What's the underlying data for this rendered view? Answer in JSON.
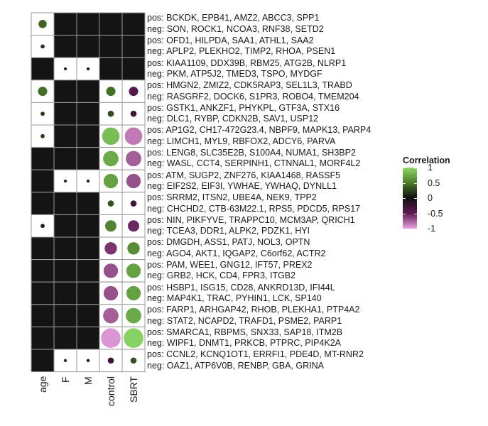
{
  "chart_data": {
    "type": "heatmap",
    "columns": [
      "age",
      "F",
      "M",
      "control",
      "SBRT"
    ],
    "rows": [
      {
        "pos": "pos: BCKDK, EPB41, AMZ2, ABCC3, SPP1",
        "neg": "neg: SON, ROCK1, NCOA3, RNF38, SETD2",
        "values": [
          0.4,
          null,
          null,
          null,
          null
        ]
      },
      {
        "pos": "pos: OFD1, HILPDA, SAA1, ATHL1, SAA2",
        "neg": "neg: APLP2, PLEKHO2, TIMP2, RHOA, PSEN1",
        "values": [
          0.2,
          null,
          null,
          null,
          null
        ]
      },
      {
        "pos": "pos: KIAA1109, DDX39B, RBM25, ATG2B, NLRP1",
        "neg": "neg: PKM, ATP5J2, TMED3, TSPO, MYDGF",
        "values": [
          null,
          0.15,
          -0.15,
          null,
          null
        ]
      },
      {
        "pos": "pos: HMGN2, ZMIZ2, CDK5RAP3, SEL1L3, TRABD",
        "neg": "neg: RASGRF2, DOCK6, S1PR3, ROBO4, TMEM204",
        "values": [
          0.45,
          null,
          null,
          0.45,
          -0.45
        ]
      },
      {
        "pos": "pos: GSTK1, ANKZF1, PHYKPL, GTF3A, STX16",
        "neg": "neg: DLC1, RYBP, CDKN2B, SAV1, USP12",
        "values": [
          0.2,
          null,
          null,
          0.3,
          -0.3
        ]
      },
      {
        "pos": "pos: AP1G2, CH17-472G23.4, NBPF9, MAPK13, PARP4",
        "neg": "neg: LIMCH1, MYL9, RBFOX2, ADCY6, PARVA",
        "values": [
          0.2,
          null,
          null,
          0.85,
          -0.85
        ]
      },
      {
        "pos": "pos: LENG8, SLC35E2B, S100A4, NUMA1, SH3BP2",
        "neg": "neg: WASL, CCT4, SERPINH1, CTNNAL1, MORF4L2",
        "values": [
          null,
          null,
          null,
          0.75,
          -0.75
        ]
      },
      {
        "pos": "pos: ATM, SUGP2, ZNF276, KIAA1468, RASSF5",
        "neg": "neg: EIF2S2, EIF3I, YWHAE, YWHAQ, DYNLL1",
        "values": [
          null,
          0.15,
          -0.15,
          0.7,
          -0.7
        ]
      },
      {
        "pos": "pos: SRRM2, ITSN2, UBE4A, NEK9, TPP2",
        "neg": "neg: CHCHD2, CTB-63M22.1, RPS5, PDCD5, RPS17",
        "values": [
          null,
          null,
          null,
          0.3,
          -0.3
        ]
      },
      {
        "pos": "pos: NIN, PIKFYVE, TRAPPC10, MCM3AP, QRICH1",
        "neg": "neg: TCEA3, DDR1, ALPK2, PDZK1, HYI",
        "values": [
          -0.2,
          null,
          null,
          0.55,
          -0.55
        ]
      },
      {
        "pos": "pos: DMGDH, ASS1, PATJ, NOL3, OPTN",
        "neg": "neg: AGO4, AKT1, IQGAP2, C6orf62, ACTR2",
        "values": [
          null,
          null,
          null,
          -0.6,
          0.6
        ]
      },
      {
        "pos": "pos: PAM, WEE1, GNG12, IFT57, PREX2",
        "neg": "neg: GRB2, HCK, CD4, FPR3, ITGB2",
        "values": [
          null,
          null,
          null,
          -0.7,
          0.7
        ]
      },
      {
        "pos": "pos: HSBP1, ISG15, CD28, ANKRD13D, IFI44L",
        "neg": "neg: MAP4K1, TRAC, PYHIN1, LCK, SP140",
        "values": [
          null,
          null,
          null,
          -0.7,
          0.7
        ]
      },
      {
        "pos": "pos: FARP1, ARHGAP42, RHOB, PLEKHA1, PTP4A2",
        "neg": "neg: STAT2, NCAPD2, TRAFD1, PSME2, PARP1",
        "values": [
          null,
          null,
          null,
          -0.75,
          0.75
        ]
      },
      {
        "pos": "pos: SMARCA1, RBPMS, SNX33, SAP18, ITM2B",
        "neg": "neg: WIPF1, DNMT1, PRKCB, PTPRC, PIP4K2A",
        "values": [
          null,
          null,
          null,
          -0.95,
          0.95
        ]
      },
      {
        "pos": "pos: CCNL2, KCNQ1OT1, ERRFI1, PDE4D, MT-RNR2",
        "neg": "neg: OAZ1, ATP6V0B, RENBP, GBA, GRINA",
        "values": [
          null,
          0.15,
          -0.15,
          -0.3,
          0.3
        ]
      }
    ],
    "legend": {
      "title": "Correlation",
      "ticks": [
        {
          "value": 1,
          "label": "1"
        },
        {
          "value": 0.5,
          "label": "0.5"
        },
        {
          "value": 0,
          "label": "0"
        },
        {
          "value": -0.5,
          "label": "-0.5"
        },
        {
          "value": -1,
          "label": "-1"
        }
      ],
      "placement": "right"
    },
    "colors": {
      "positive_high": "#8ed968",
      "positive_mid": "#4a7a2a",
      "zero": "#101010",
      "negative_mid": "#5e1a52",
      "negative_high": "#e9a3e0",
      "empty_cell": "#141414",
      "nonzero_cell": "#ffffff",
      "grid": "#9a9a9a"
    }
  }
}
